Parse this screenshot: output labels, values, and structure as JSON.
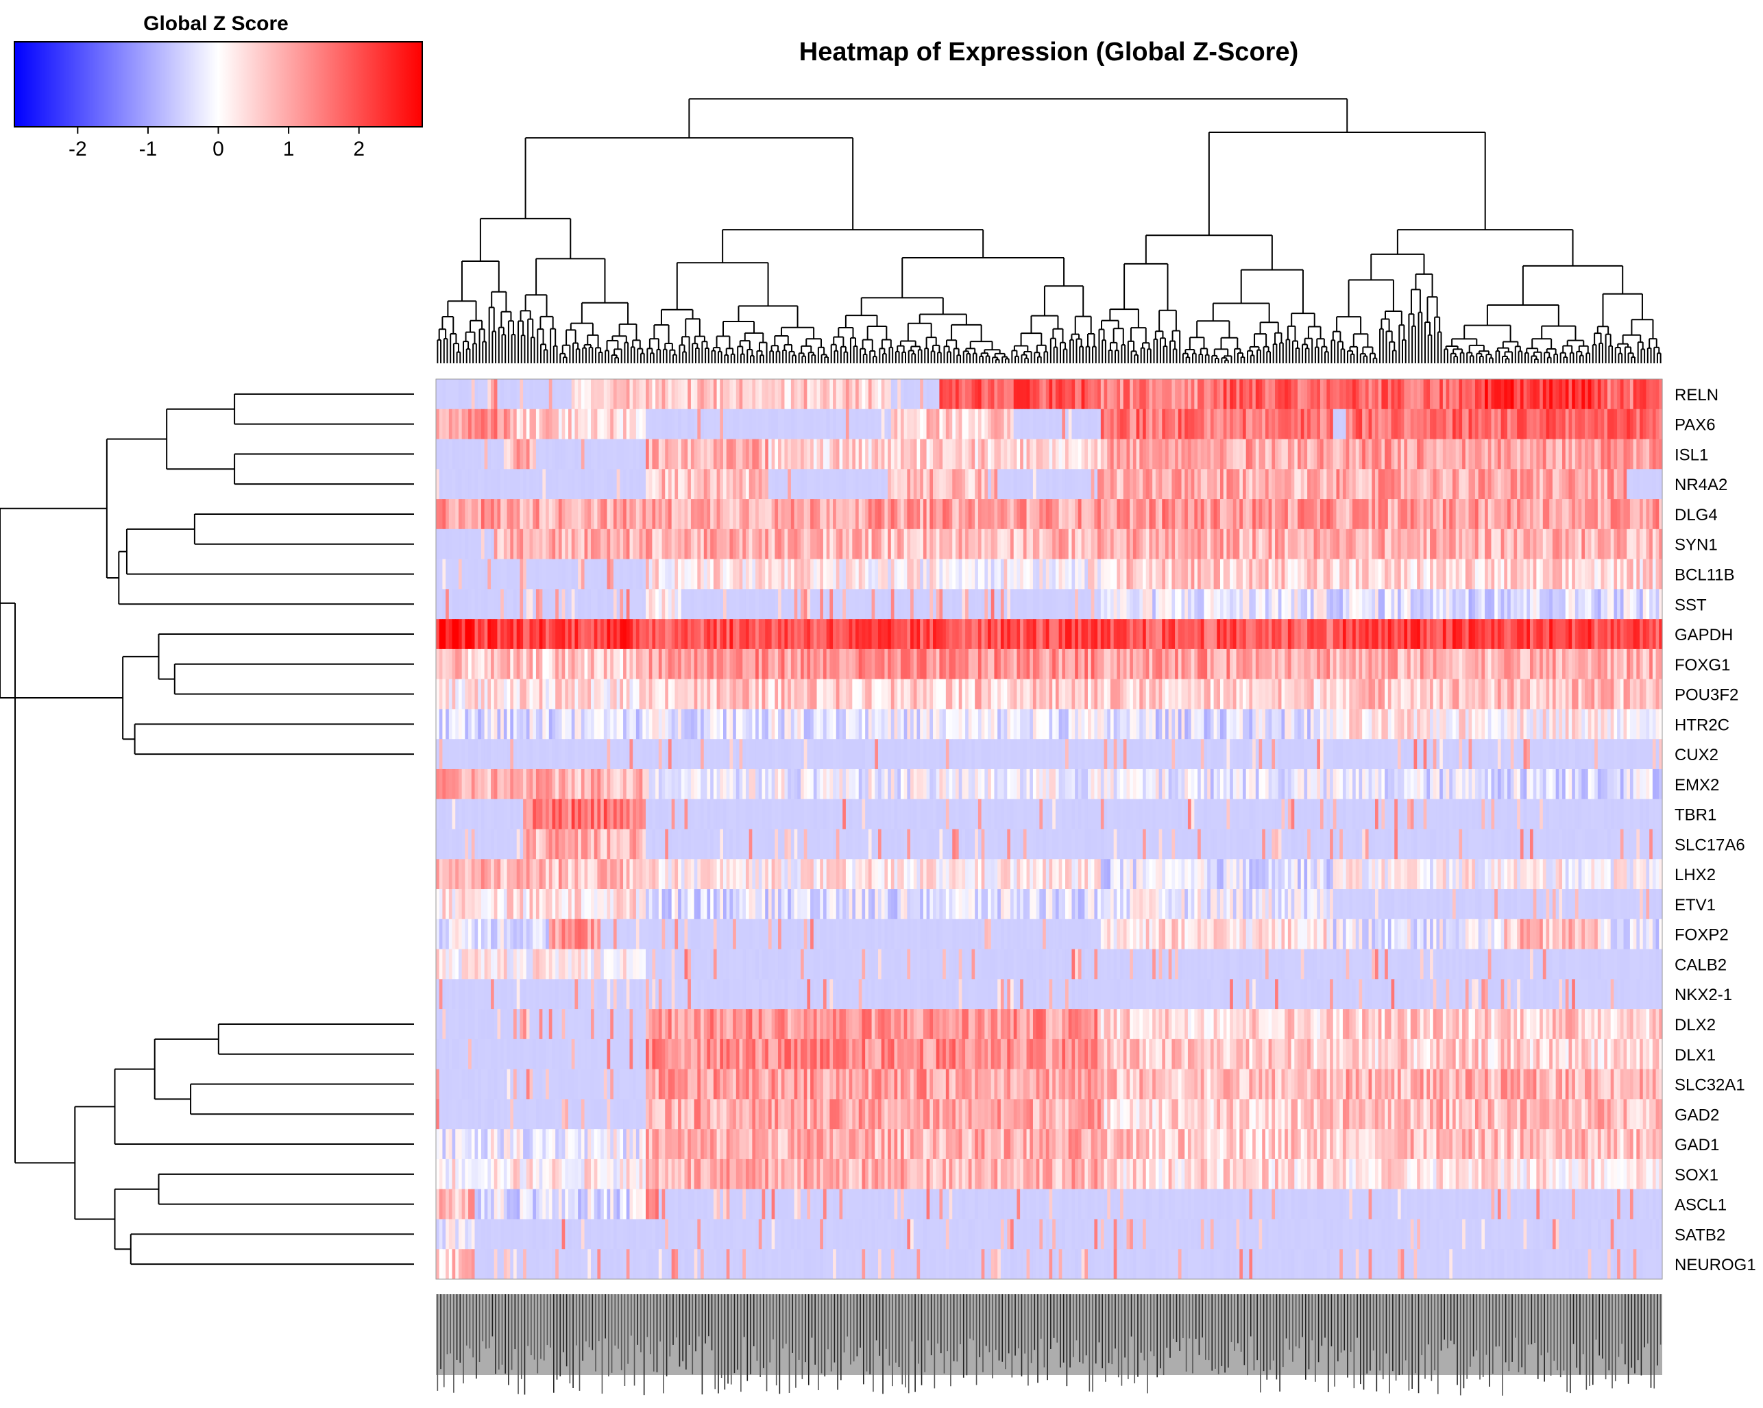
{
  "chart_data": {
    "type": "heatmap",
    "title": "Heatmap of Expression (Global Z-Score)",
    "legend": {
      "title": "Global Z Score",
      "ticks": [
        -2,
        -1,
        0,
        1,
        2
      ],
      "range": [
        -2.9,
        2.9
      ],
      "colors": {
        "low": "#0000ff",
        "mid": "#ffffff",
        "high": "#ff0000"
      },
      "placement": "top-left"
    },
    "row_dendrogram": true,
    "column_dendrogram": true,
    "n_columns": 380,
    "grid": false,
    "rows": [
      {
        "gene": "RELN",
        "base": -0.5,
        "blocks": [
          [
            0.0,
            0.11,
            -0.6
          ],
          [
            0.11,
            0.37,
            0.6
          ],
          [
            0.37,
            0.41,
            -0.5
          ],
          [
            0.41,
            0.54,
            1.9
          ],
          [
            0.54,
            0.62,
            1.4
          ],
          [
            0.62,
            0.73,
            1.8
          ],
          [
            0.73,
            0.85,
            1.7
          ],
          [
            0.85,
            0.95,
            2.3
          ],
          [
            0.95,
            1.0,
            1.7
          ]
        ]
      },
      {
        "gene": "PAX6",
        "base": -0.6,
        "blocks": [
          [
            0.0,
            0.06,
            1.2
          ],
          [
            0.06,
            0.17,
            0.5
          ],
          [
            0.17,
            0.37,
            -0.6
          ],
          [
            0.37,
            0.47,
            0.6
          ],
          [
            0.47,
            0.54,
            -0.6
          ],
          [
            0.54,
            0.73,
            1.6
          ],
          [
            0.73,
            0.74,
            -0.6
          ],
          [
            0.74,
            1.0,
            1.7
          ]
        ]
      },
      {
        "gene": "ISL1",
        "base": -0.6,
        "blocks": [
          [
            0.0,
            0.06,
            -0.6
          ],
          [
            0.06,
            0.08,
            0.9
          ],
          [
            0.08,
            0.17,
            -0.6
          ],
          [
            0.17,
            0.27,
            0.9
          ],
          [
            0.27,
            0.37,
            0.4
          ],
          [
            0.37,
            0.54,
            0.5
          ],
          [
            0.54,
            0.73,
            1.0
          ],
          [
            0.73,
            1.0,
            1.1
          ]
        ]
      },
      {
        "gene": "NR4A2",
        "base": -0.6,
        "blocks": [
          [
            0.0,
            0.17,
            -0.6
          ],
          [
            0.17,
            0.27,
            0.7
          ],
          [
            0.27,
            0.37,
            -0.6
          ],
          [
            0.37,
            0.45,
            0.8
          ],
          [
            0.45,
            0.54,
            -0.6
          ],
          [
            0.54,
            0.73,
            0.9
          ],
          [
            0.73,
            0.73,
            -0.6
          ],
          [
            0.73,
            0.97,
            1.0
          ],
          [
            0.97,
            1.0,
            -0.6
          ]
        ]
      },
      {
        "gene": "DLG4",
        "base": -0.6,
        "blocks": [
          [
            0.0,
            0.05,
            1.2
          ],
          [
            0.05,
            0.3,
            1.0
          ],
          [
            0.3,
            0.54,
            1.1
          ],
          [
            0.54,
            0.73,
            1.2
          ],
          [
            0.73,
            1.0,
            1.1
          ]
        ]
      },
      {
        "gene": "SYN1",
        "base": -0.6,
        "blocks": [
          [
            0.0,
            0.05,
            -0.6
          ],
          [
            0.05,
            0.3,
            0.9
          ],
          [
            0.3,
            0.54,
            0.8
          ],
          [
            0.54,
            0.73,
            0.9
          ],
          [
            0.73,
            1.0,
            0.9
          ]
        ]
      },
      {
        "gene": "BCL11B",
        "base": -0.6,
        "blocks": [
          [
            0.0,
            0.17,
            -0.6
          ],
          [
            0.17,
            0.3,
            0.3
          ],
          [
            0.3,
            0.54,
            0.1
          ],
          [
            0.54,
            0.73,
            0.6
          ],
          [
            0.73,
            1.0,
            0.4
          ]
        ]
      },
      {
        "gene": "SST",
        "base": -0.6,
        "blocks": [
          [
            0.0,
            0.17,
            -0.6
          ],
          [
            0.17,
            0.2,
            0.2
          ],
          [
            0.2,
            0.54,
            -0.4
          ],
          [
            0.54,
            0.73,
            -0.2
          ],
          [
            0.73,
            1.0,
            -0.3
          ]
        ]
      },
      {
        "gene": "GAPDH",
        "base": 2.0,
        "blocks": [
          [
            0.0,
            0.03,
            2.6
          ],
          [
            0.03,
            0.17,
            2.2
          ],
          [
            0.17,
            0.54,
            2.0
          ],
          [
            0.54,
            0.73,
            1.9
          ],
          [
            0.73,
            1.0,
            2.1
          ]
        ]
      },
      {
        "gene": "FOXG1",
        "base": 0.9,
        "blocks": [
          [
            0.0,
            0.17,
            0.6
          ],
          [
            0.17,
            0.54,
            1.2
          ],
          [
            0.54,
            0.73,
            1.1
          ],
          [
            0.73,
            1.0,
            0.9
          ]
        ]
      },
      {
        "gene": "POU3F2",
        "base": 0.6,
        "blocks": [
          [
            0.0,
            0.17,
            0.3
          ],
          [
            0.17,
            0.54,
            0.6
          ],
          [
            0.54,
            0.73,
            0.5
          ],
          [
            0.73,
            1.0,
            0.7
          ]
        ]
      },
      {
        "gene": "HTR2C",
        "base": -0.6,
        "blocks": [
          [
            0.0,
            0.17,
            -0.3
          ],
          [
            0.17,
            0.54,
            -0.2
          ],
          [
            0.54,
            0.73,
            -0.3
          ],
          [
            0.73,
            1.0,
            0.2
          ]
        ]
      },
      {
        "gene": "CUX2",
        "base": -0.6,
        "blocks": [
          [
            0.0,
            1.0,
            -0.55
          ]
        ]
      },
      {
        "gene": "EMX2",
        "base": -0.6,
        "blocks": [
          [
            0.0,
            0.17,
            0.9
          ],
          [
            0.17,
            0.54,
            -0.1
          ],
          [
            0.54,
            0.73,
            -0.2
          ],
          [
            0.73,
            1.0,
            -0.3
          ]
        ]
      },
      {
        "gene": "TBR1",
        "base": -0.6,
        "blocks": [
          [
            0.0,
            0.07,
            -0.6
          ],
          [
            0.07,
            0.17,
            1.6
          ],
          [
            0.17,
            1.0,
            -0.58
          ]
        ]
      },
      {
        "gene": "SLC17A6",
        "base": -0.6,
        "blocks": [
          [
            0.0,
            0.07,
            -0.6
          ],
          [
            0.07,
            0.17,
            0.9
          ],
          [
            0.17,
            1.0,
            -0.58
          ]
        ]
      },
      {
        "gene": "LHX2",
        "base": -0.6,
        "blocks": [
          [
            0.0,
            0.17,
            0.8
          ],
          [
            0.17,
            0.54,
            0.2
          ],
          [
            0.54,
            0.73,
            -0.3
          ],
          [
            0.73,
            1.0,
            0.1
          ]
        ]
      },
      {
        "gene": "ETV1",
        "base": -0.6,
        "blocks": [
          [
            0.0,
            0.17,
            0.3
          ],
          [
            0.17,
            0.54,
            -0.3
          ],
          [
            0.54,
            0.73,
            -0.1
          ],
          [
            0.73,
            1.0,
            -0.4
          ]
        ]
      },
      {
        "gene": "FOXP2",
        "base": -0.6,
        "blocks": [
          [
            0.0,
            0.09,
            -0.2
          ],
          [
            0.09,
            0.13,
            1.2
          ],
          [
            0.13,
            0.54,
            -0.4
          ],
          [
            0.54,
            0.73,
            0.3
          ],
          [
            0.73,
            0.87,
            -0.2
          ],
          [
            0.87,
            0.95,
            0.7
          ],
          [
            0.95,
            1.0,
            -0.3
          ]
        ]
      },
      {
        "gene": "CALB2",
        "base": -0.6,
        "blocks": [
          [
            0.0,
            0.17,
            0.2
          ],
          [
            0.17,
            1.0,
            -0.5
          ]
        ]
      },
      {
        "gene": "NKX2-1",
        "base": -0.6,
        "blocks": [
          [
            0.0,
            1.0,
            -0.58
          ]
        ]
      },
      {
        "gene": "DLX2",
        "base": -0.6,
        "blocks": [
          [
            0.0,
            0.17,
            -0.4
          ],
          [
            0.17,
            0.54,
            1.2
          ],
          [
            0.54,
            0.73,
            0.5
          ],
          [
            0.73,
            1.0,
            0.6
          ]
        ]
      },
      {
        "gene": "DLX1",
        "base": -0.6,
        "blocks": [
          [
            0.0,
            0.17,
            -0.4
          ],
          [
            0.17,
            0.54,
            1.3
          ],
          [
            0.54,
            0.73,
            0.6
          ],
          [
            0.73,
            1.0,
            0.5
          ]
        ]
      },
      {
        "gene": "SLC32A1",
        "base": -0.6,
        "blocks": [
          [
            0.0,
            0.17,
            -0.5
          ],
          [
            0.17,
            0.54,
            1.1
          ],
          [
            0.54,
            0.73,
            0.7
          ],
          [
            0.73,
            1.0,
            0.9
          ]
        ]
      },
      {
        "gene": "GAD2",
        "base": -0.6,
        "blocks": [
          [
            0.0,
            0.17,
            -0.4
          ],
          [
            0.17,
            0.54,
            1.0
          ],
          [
            0.54,
            0.73,
            0.5
          ],
          [
            0.73,
            1.0,
            0.8
          ]
        ]
      },
      {
        "gene": "GAD1",
        "base": -0.6,
        "blocks": [
          [
            0.0,
            0.17,
            -0.1
          ],
          [
            0.17,
            0.54,
            0.9
          ],
          [
            0.54,
            0.73,
            0.6
          ],
          [
            0.73,
            1.0,
            0.7
          ]
        ]
      },
      {
        "gene": "SOX1",
        "base": -0.6,
        "blocks": [
          [
            0.0,
            0.17,
            0.2
          ],
          [
            0.17,
            0.54,
            0.9
          ],
          [
            0.54,
            0.73,
            0.4
          ],
          [
            0.73,
            1.0,
            0.3
          ]
        ]
      },
      {
        "gene": "ASCL1",
        "base": -0.6,
        "blocks": [
          [
            0.0,
            0.03,
            0.8
          ],
          [
            0.03,
            0.17,
            -0.3
          ],
          [
            0.17,
            0.18,
            1.8
          ],
          [
            0.18,
            1.0,
            -0.4
          ]
        ]
      },
      {
        "gene": "SATB2",
        "base": -0.6,
        "blocks": [
          [
            0.0,
            0.03,
            -0.1
          ],
          [
            0.03,
            1.0,
            -0.52
          ]
        ]
      },
      {
        "gene": "NEUROG1",
        "base": -0.6,
        "blocks": [
          [
            0.0,
            0.03,
            0.6
          ],
          [
            0.03,
            1.0,
            -0.5
          ]
        ]
      }
    ]
  }
}
